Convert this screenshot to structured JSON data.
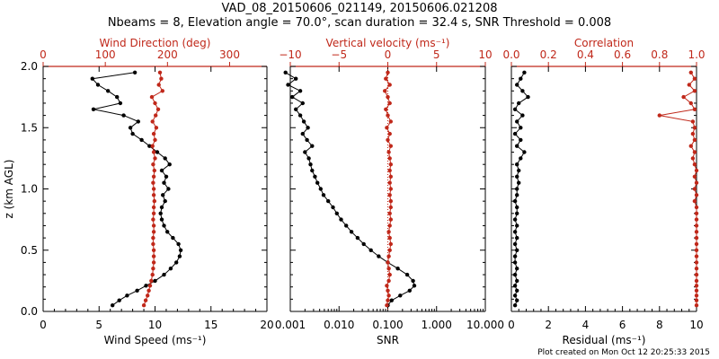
{
  "title": "VAD_08_20150606_021149, 20150606.021208",
  "subtitle": "Nbeams = 8, Elevation angle = 70.0°, scan duration = 32.4 s, SNR Threshold = 0.008",
  "footer": "Plot created on Mon Oct 12 20:25:33 2015",
  "colors": {
    "black": "#000000",
    "red": "#c0281a"
  },
  "chart_data": [
    {
      "type": "scatter",
      "panel": "left",
      "ylabel": "z (km AGL)",
      "ylim": [
        0,
        2.0
      ],
      "yticks": [
        "0.0",
        "0.5",
        "1.0",
        "1.5",
        "2.0"
      ],
      "bottom_axis": {
        "label": "Wind Speed (ms⁻¹)",
        "range": [
          0,
          20
        ],
        "ticks": [
          "0",
          "5",
          "10",
          "15",
          "20"
        ]
      },
      "top_axis": {
        "label": "Wind Direction (deg)",
        "range": [
          0,
          360
        ],
        "ticks": [
          "0",
          "100",
          "200",
          "300"
        ]
      },
      "z": [
        0.05,
        0.09,
        0.13,
        0.17,
        0.21,
        0.25,
        0.3,
        0.35,
        0.4,
        0.45,
        0.5,
        0.55,
        0.6,
        0.65,
        0.7,
        0.75,
        0.8,
        0.85,
        0.9,
        0.95,
        1.0,
        1.05,
        1.1,
        1.15,
        1.2,
        1.25,
        1.3,
        1.35,
        1.4,
        1.45,
        1.5,
        1.55,
        1.6,
        1.65,
        1.7,
        1.75,
        1.8,
        1.85,
        1.9,
        1.95
      ],
      "series": [
        {
          "name": "Wind Speed",
          "axis": "bottom",
          "color": "#000000",
          "values": [
            6.2,
            6.8,
            7.5,
            8.4,
            9.2,
            10.0,
            10.8,
            11.4,
            11.9,
            12.2,
            12.3,
            12.1,
            11.6,
            11.1,
            10.8,
            10.6,
            10.5,
            10.6,
            10.9,
            10.7,
            11.2,
            10.8,
            11.0,
            10.6,
            11.3,
            10.9,
            10.2,
            9.5,
            8.8,
            8.0,
            7.8,
            8.5,
            7.2,
            4.5,
            6.9,
            6.6,
            5.8,
            4.9,
            4.4,
            8.2
          ]
        },
        {
          "name": "Wind Direction",
          "axis": "top",
          "color": "#c0281a",
          "values": [
            162,
            165,
            168,
            170,
            172,
            174,
            176,
            177,
            178,
            178,
            178,
            177,
            177,
            178,
            178,
            177,
            178,
            178,
            179,
            178,
            178,
            177,
            178,
            179,
            177,
            180,
            178,
            176,
            180,
            178,
            182,
            176,
            181,
            185,
            180,
            175,
            192,
            186,
            190,
            188
          ]
        }
      ]
    },
    {
      "type": "scatter",
      "panel": "middle",
      "ylim": [
        0,
        2.0
      ],
      "bottom_axis": {
        "label": "SNR",
        "scale": "log",
        "range": [
          0.001,
          10
        ],
        "ticks": [
          "0.001",
          "0.010",
          "0.100",
          "1.000",
          "10.000"
        ]
      },
      "top_axis": {
        "label": "Vertical velocity (ms⁻¹)",
        "range": [
          -10,
          10
        ],
        "ticks": [
          "−10",
          "−5",
          "0",
          "5",
          "10"
        ]
      },
      "z": [
        0.05,
        0.09,
        0.13,
        0.17,
        0.21,
        0.25,
        0.3,
        0.35,
        0.4,
        0.45,
        0.5,
        0.55,
        0.6,
        0.65,
        0.7,
        0.75,
        0.8,
        0.85,
        0.9,
        0.95,
        1.0,
        1.05,
        1.1,
        1.15,
        1.2,
        1.25,
        1.3,
        1.35,
        1.4,
        1.45,
        1.5,
        1.55,
        1.6,
        1.65,
        1.7,
        1.75,
        1.8,
        1.85,
        1.9,
        1.95
      ],
      "series": [
        {
          "name": "SNR",
          "axis": "bottom",
          "color": "#000000",
          "values": [
            0.1,
            0.12,
            0.18,
            0.28,
            0.35,
            0.33,
            0.25,
            0.16,
            0.1,
            0.065,
            0.045,
            0.032,
            0.024,
            0.018,
            0.014,
            0.011,
            0.009,
            0.0075,
            0.006,
            0.0048,
            0.0042,
            0.0036,
            0.0032,
            0.0028,
            0.0026,
            0.0024,
            0.002,
            0.0028,
            0.0022,
            0.0018,
            0.0023,
            0.0019,
            0.0016,
            0.0013,
            0.0018,
            0.0011,
            0.0016,
            0.0009,
            0.0013,
            0.0008
          ]
        },
        {
          "name": "Vertical velocity",
          "axis": "top",
          "color": "#c0281a",
          "values": [
            -0.1,
            0.0,
            0.1,
            0.0,
            -0.1,
            0.1,
            0.2,
            0.1,
            0.0,
            0.1,
            0.2,
            0.3,
            0.2,
            0.1,
            0.2,
            0.3,
            0.2,
            0.3,
            0.3,
            0.2,
            0.3,
            0.2,
            0.3,
            0.2,
            0.3,
            0.2,
            0.1,
            0.3,
            0.0,
            0.2,
            -0.1,
            0.3,
            0.0,
            -0.2,
            0.2,
            0.0,
            -0.3,
            0.2,
            -0.2,
            0.0
          ]
        }
      ]
    },
    {
      "type": "scatter",
      "panel": "right",
      "ylim": [
        0,
        2.0
      ],
      "bottom_axis": {
        "label": "Residual (ms⁻¹)",
        "range": [
          0,
          10
        ],
        "ticks": [
          "0",
          "2",
          "4",
          "6",
          "8",
          "10"
        ]
      },
      "top_axis": {
        "label": "Correlation",
        "range": [
          0.0,
          1.0
        ],
        "ticks": [
          "0.0",
          "0.2",
          "0.4",
          "0.6",
          "0.8",
          "1.0"
        ]
      },
      "z": [
        0.05,
        0.09,
        0.13,
        0.17,
        0.21,
        0.25,
        0.3,
        0.35,
        0.4,
        0.45,
        0.5,
        0.55,
        0.6,
        0.65,
        0.7,
        0.75,
        0.8,
        0.85,
        0.9,
        0.95,
        1.0,
        1.05,
        1.1,
        1.15,
        1.2,
        1.25,
        1.3,
        1.35,
        1.4,
        1.45,
        1.5,
        1.55,
        1.6,
        1.65,
        1.7,
        1.75,
        1.8,
        1.85,
        1.9,
        1.95
      ],
      "series": [
        {
          "name": "Residual",
          "axis": "bottom",
          "color": "#000000",
          "values": [
            0.2,
            0.3,
            0.2,
            0.3,
            0.2,
            0.3,
            0.2,
            0.3,
            0.2,
            0.2,
            0.3,
            0.2,
            0.3,
            0.2,
            0.3,
            0.2,
            0.3,
            0.3,
            0.2,
            0.3,
            0.3,
            0.4,
            0.3,
            0.4,
            0.3,
            0.5,
            0.7,
            0.3,
            0.5,
            0.2,
            0.5,
            0.3,
            0.6,
            0.2,
            0.4,
            0.9,
            0.6,
            0.3,
            0.5,
            0.7
          ]
        },
        {
          "name": "Correlation",
          "axis": "top",
          "color": "#c0281a",
          "values": [
            1.0,
            1.0,
            1.0,
            1.0,
            1.0,
            1.0,
            1.0,
            1.0,
            1.0,
            1.0,
            1.0,
            1.0,
            1.0,
            1.0,
            1.0,
            1.0,
            1.0,
            1.0,
            0.99,
            1.0,
            0.99,
            1.0,
            0.99,
            1.0,
            0.99,
            0.98,
            0.99,
            0.97,
            0.99,
            0.98,
            0.99,
            0.98,
            0.8,
            0.99,
            0.97,
            0.93,
            0.99,
            0.96,
            0.99,
            0.97
          ]
        }
      ]
    }
  ]
}
